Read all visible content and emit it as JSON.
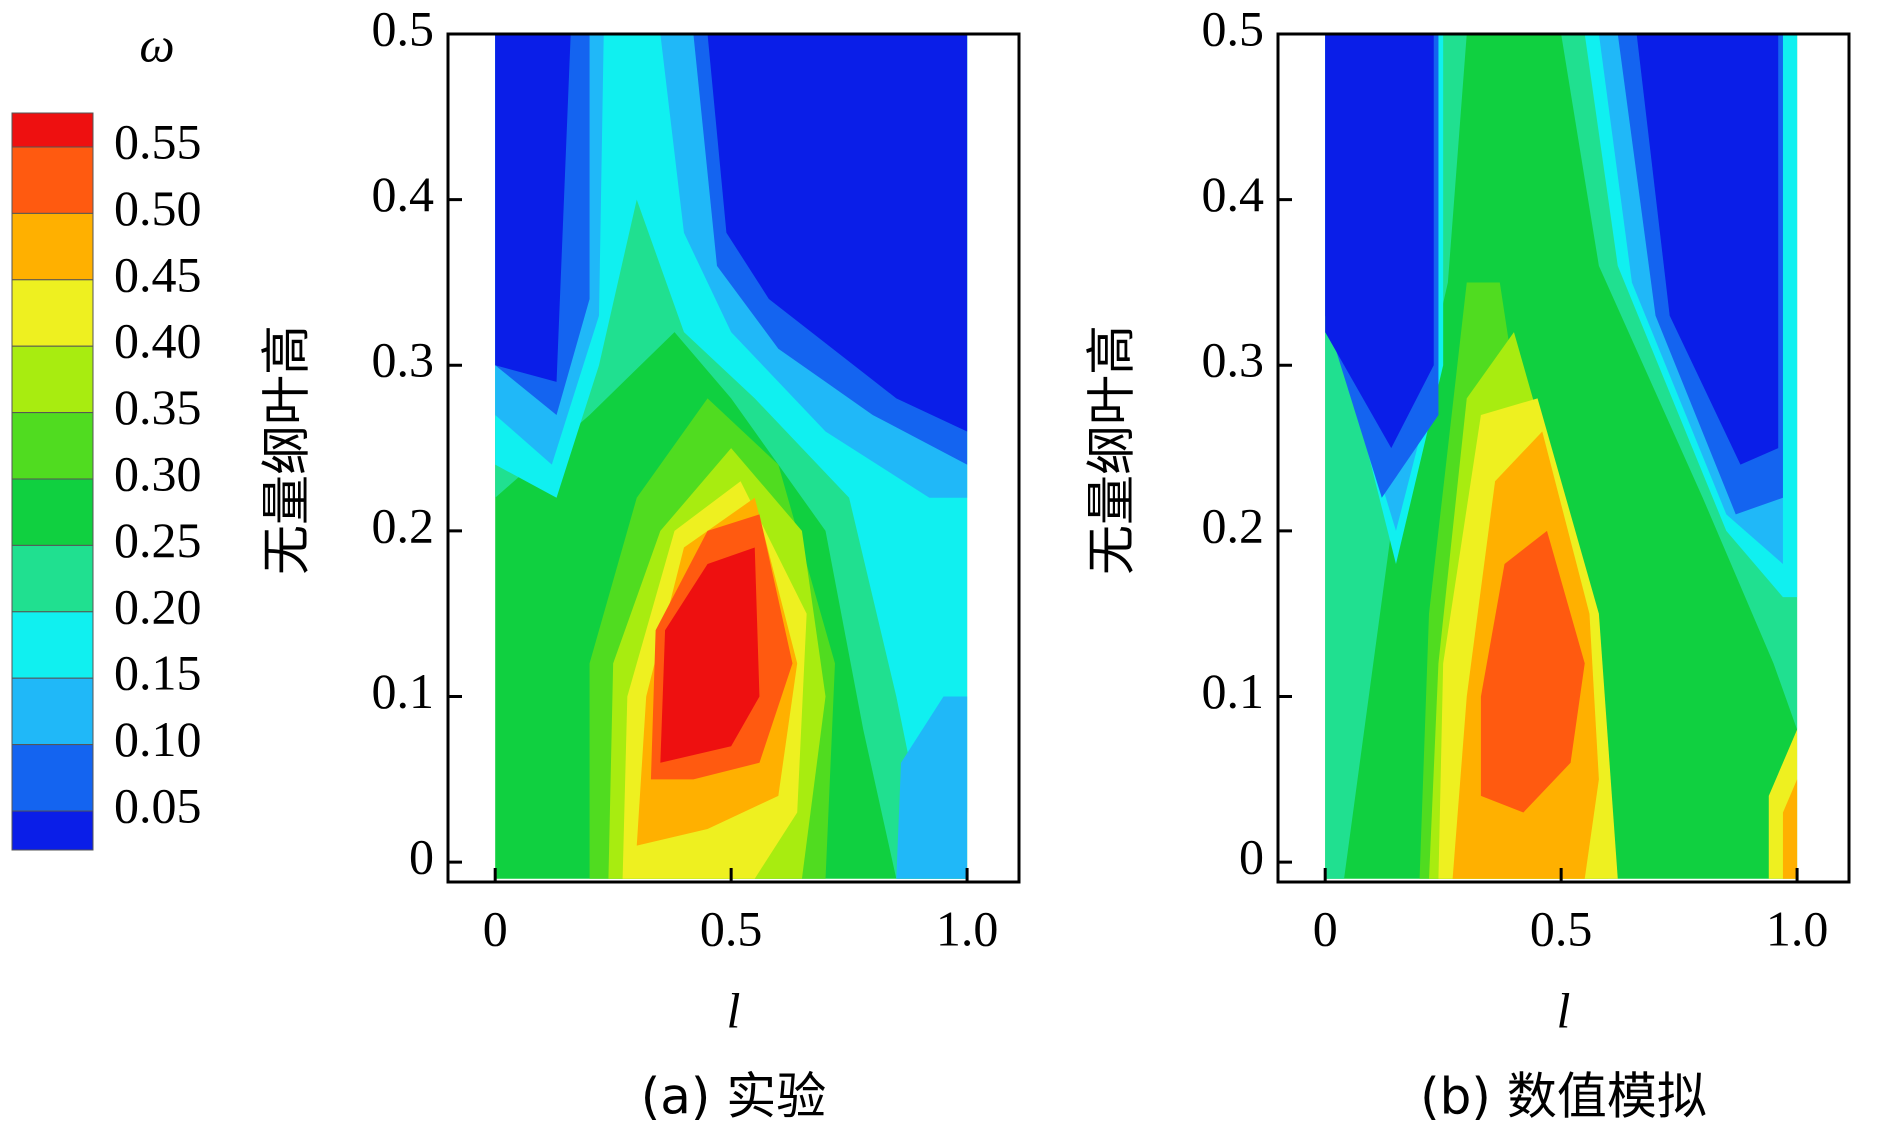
{
  "colorbar": {
    "title": "ω",
    "labels": [
      0.55,
      {
        "value": 0.5,
        "label": "0.50"
      },
      0.45,
      {
        "value": 0.4,
        "label": "0.40"
      },
      0.35,
      {
        "value": 0.3,
        "label": "0.30"
      },
      0.25,
      {
        "value": 0.2,
        "label": "0.20"
      },
      0.15,
      {
        "value": 0.1,
        "label": "0.10"
      },
      0.05
    ],
    "colors": [
      "#ee1010",
      "#ff5a10",
      "#ffb000",
      "#eef020",
      "#a8ec10",
      "#50dc20",
      "#10d040",
      "#20e090",
      "#10f0f0",
      "#20b8f8",
      "#1464f0",
      "#0a1ee8"
    ]
  },
  "chart_data": [
    {
      "type": "contour",
      "caption": "(a) 实验",
      "xlabel": "l",
      "ylabel": "无量纲叶高",
      "xlim": [
        -0.1,
        1.11
      ],
      "ylim": [
        -0.012,
        0.5
      ],
      "xticks": [
        0,
        0.5,
        {
          "value": 1,
          "label": "1.0"
        }
      ],
      "yticks": [
        0,
        0.1,
        0.2,
        0.3,
        0.4,
        0.5
      ],
      "regions": [
        {
          "color": "#10d040",
          "points": [
            [
              0,
              -0.01
            ],
            [
              0,
              0.5
            ],
            [
              1,
              0.5
            ],
            [
              1,
              -0.01
            ]
          ]
        },
        {
          "color": "#20e090",
          "points": [
            [
              0,
              0.5
            ],
            [
              0,
              0.22
            ],
            [
              0.2,
              0.27
            ],
            [
              0.38,
              0.32
            ],
            [
              0.5,
              0.28
            ],
            [
              0.7,
              0.2
            ],
            [
              0.78,
              0.08
            ],
            [
              0.85,
              -0.01
            ],
            [
              1,
              -0.01
            ],
            [
              1,
              0.5
            ]
          ]
        },
        {
          "color": "#10f0f0",
          "points": [
            [
              0,
              0.5
            ],
            [
              0,
              0.24
            ],
            [
              0.13,
              0.22
            ],
            [
              0.22,
              0.3
            ],
            [
              0.3,
              0.4
            ],
            [
              0.4,
              0.32
            ],
            [
              0.55,
              0.28
            ],
            [
              0.75,
              0.22
            ],
            [
              0.85,
              0.1
            ],
            [
              0.9,
              0.03
            ],
            [
              1,
              0.03
            ],
            [
              1,
              0.5
            ]
          ]
        },
        {
          "color": "#20b8f8",
          "points": [
            [
              0,
              0.5
            ],
            [
              0,
              0.27
            ],
            [
              0.12,
              0.24
            ],
            [
              0.22,
              0.33
            ],
            [
              0.23,
              0.5
            ],
            [
              0.35,
              0.5
            ],
            [
              0.4,
              0.38
            ],
            [
              0.5,
              0.32
            ],
            [
              0.7,
              0.26
            ],
            [
              0.92,
              0.22
            ],
            [
              1,
              0.22
            ],
            [
              1,
              0.5
            ]
          ]
        },
        {
          "color": "#20b8f8",
          "points": [
            [
              0.85,
              -0.01
            ],
            [
              0.86,
              0.06
            ],
            [
              0.95,
              0.1
            ],
            [
              1,
              0.1
            ],
            [
              1,
              -0.01
            ]
          ]
        },
        {
          "color": "#1464f0",
          "points": [
            [
              0,
              0.5
            ],
            [
              0,
              0.3
            ],
            [
              0.13,
              0.27
            ],
            [
              0.2,
              0.34
            ],
            [
              0.2,
              0.5
            ]
          ]
        },
        {
          "color": "#1464f0",
          "points": [
            [
              0.42,
              0.5
            ],
            [
              0.47,
              0.36
            ],
            [
              0.6,
              0.31
            ],
            [
              0.8,
              0.27
            ],
            [
              1,
              0.24
            ],
            [
              1,
              0.5
            ]
          ]
        },
        {
          "color": "#0a1ee8",
          "points": [
            [
              0,
              0.5
            ],
            [
              0,
              0.3
            ],
            [
              0.13,
              0.29
            ],
            [
              0.16,
              0.5
            ]
          ]
        },
        {
          "color": "#0a1ee8",
          "points": [
            [
              0.45,
              0.5
            ],
            [
              0.49,
              0.38
            ],
            [
              0.58,
              0.34
            ],
            [
              0.85,
              0.28
            ],
            [
              1,
              0.26
            ],
            [
              1,
              0.5
            ]
          ]
        },
        {
          "color": "#50dc20",
          "points": [
            [
              0.2,
              -0.01
            ],
            [
              0.2,
              0.12
            ],
            [
              0.3,
              0.22
            ],
            [
              0.45,
              0.28
            ],
            [
              0.6,
              0.24
            ],
            [
              0.72,
              0.12
            ],
            [
              0.7,
              -0.01
            ]
          ]
        },
        {
          "color": "#a8ec10",
          "points": [
            [
              0.24,
              -0.01
            ],
            [
              0.25,
              0.12
            ],
            [
              0.35,
              0.2
            ],
            [
              0.5,
              0.25
            ],
            [
              0.65,
              0.2
            ],
            [
              0.7,
              0.1
            ],
            [
              0.65,
              -0.01
            ]
          ]
        },
        {
          "color": "#eef020",
          "points": [
            [
              0.27,
              -0.01
            ],
            [
              0.28,
              0.1
            ],
            [
              0.38,
              0.2
            ],
            [
              0.52,
              0.23
            ],
            [
              0.66,
              0.15
            ],
            [
              0.64,
              0.03
            ],
            [
              0.55,
              -0.01
            ]
          ]
        },
        {
          "color": "#ffb000",
          "points": [
            [
              0.3,
              0.01
            ],
            [
              0.32,
              0.1
            ],
            [
              0.4,
              0.19
            ],
            [
              0.55,
              0.22
            ],
            [
              0.64,
              0.12
            ],
            [
              0.6,
              0.04
            ],
            [
              0.45,
              0.02
            ]
          ]
        },
        {
          "color": "#ff5a10",
          "points": [
            [
              0.33,
              0.05
            ],
            [
              0.34,
              0.14
            ],
            [
              0.45,
              0.2
            ],
            [
              0.56,
              0.21
            ],
            [
              0.63,
              0.12
            ],
            [
              0.56,
              0.06
            ],
            [
              0.42,
              0.05
            ]
          ]
        },
        {
          "color": "#ee1010",
          "points": [
            [
              0.35,
              0.06
            ],
            [
              0.36,
              0.14
            ],
            [
              0.45,
              0.18
            ],
            [
              0.55,
              0.19
            ],
            [
              0.56,
              0.1
            ],
            [
              0.5,
              0.07
            ]
          ]
        }
      ]
    },
    {
      "type": "contour",
      "caption": "(b) 数值模拟",
      "xlabel": "l",
      "ylabel": "无量纲叶高",
      "xlim": [
        -0.1,
        1.11
      ],
      "ylim": [
        -0.012,
        0.5
      ],
      "xticks": [
        0,
        0.5,
        {
          "value": 1,
          "label": "1.0"
        }
      ],
      "yticks": [
        0,
        0.1,
        0.2,
        0.3,
        0.4,
        0.5
      ],
      "regions": [
        {
          "color": "#10d040",
          "points": [
            [
              0,
              -0.01
            ],
            [
              0,
              0.5
            ],
            [
              1,
              0.5
            ],
            [
              1,
              -0.01
            ]
          ]
        },
        {
          "color": "#20e090",
          "points": [
            [
              0,
              0.5
            ],
            [
              0,
              -0.01
            ],
            [
              0.04,
              -0.01
            ],
            [
              0.14,
              0.2
            ],
            [
              0.26,
              0.35
            ],
            [
              0.3,
              0.5
            ]
          ]
        },
        {
          "color": "#20e090",
          "points": [
            [
              0.5,
              0.5
            ],
            [
              0.58,
              0.36
            ],
            [
              0.8,
              0.22
            ],
            [
              0.95,
              0.12
            ],
            [
              1,
              0.08
            ],
            [
              1,
              0.5
            ]
          ]
        },
        {
          "color": "#10f0f0",
          "points": [
            [
              0,
              0.5
            ],
            [
              0,
              0.35
            ],
            [
              0.15,
              0.18
            ],
            [
              0.25,
              0.3
            ],
            [
              0.25,
              0.5
            ]
          ]
        },
        {
          "color": "#10f0f0",
          "points": [
            [
              0.55,
              0.5
            ],
            [
              0.62,
              0.36
            ],
            [
              0.85,
              0.2
            ],
            [
              0.97,
              0.16
            ],
            [
              1,
              0.16
            ],
            [
              1,
              0.5
            ]
          ]
        },
        {
          "color": "#20b8f8",
          "points": [
            [
              0,
              0.5
            ],
            [
              0,
              0.34
            ],
            [
              0.15,
              0.2
            ],
            [
              0.24,
              0.3
            ],
            [
              0.24,
              0.5
            ]
          ]
        },
        {
          "color": "#20b8f8",
          "points": [
            [
              0.58,
              0.5
            ],
            [
              0.65,
              0.35
            ],
            [
              0.85,
              0.21
            ],
            [
              0.97,
              0.18
            ],
            [
              0.97,
              0.5
            ]
          ]
        },
        {
          "color": "#1464f0",
          "points": [
            [
              0,
              0.5
            ],
            [
              0,
              0.33
            ],
            [
              0.12,
              0.22
            ],
            [
              0.24,
              0.27
            ],
            [
              0.24,
              0.5
            ]
          ]
        },
        {
          "color": "#1464f0",
          "points": [
            [
              0.62,
              0.5
            ],
            [
              0.7,
              0.33
            ],
            [
              0.87,
              0.21
            ],
            [
              0.97,
              0.22
            ],
            [
              0.97,
              0.5
            ]
          ]
        },
        {
          "color": "#0a1ee8",
          "points": [
            [
              0,
              0.5
            ],
            [
              0,
              0.32
            ],
            [
              0.14,
              0.25
            ],
            [
              0.23,
              0.3
            ],
            [
              0.23,
              0.5
            ]
          ]
        },
        {
          "color": "#0a1ee8",
          "points": [
            [
              0.66,
              0.5
            ],
            [
              0.73,
              0.33
            ],
            [
              0.88,
              0.24
            ],
            [
              0.96,
              0.25
            ],
            [
              0.96,
              0.5
            ]
          ]
        },
        {
          "color": "#50dc20",
          "points": [
            [
              0.2,
              -0.01
            ],
            [
              0.22,
              0.15
            ],
            [
              0.3,
              0.35
            ],
            [
              0.37,
              0.35
            ],
            [
              0.45,
              0.2
            ],
            [
              0.5,
              -0.01
            ]
          ]
        },
        {
          "color": "#a8ec10",
          "points": [
            [
              0.22,
              -0.01
            ],
            [
              0.24,
              0.12
            ],
            [
              0.3,
              0.28
            ],
            [
              0.4,
              0.32
            ],
            [
              0.52,
              0.2
            ],
            [
              0.6,
              -0.01
            ]
          ]
        },
        {
          "color": "#eef020",
          "points": [
            [
              0.24,
              -0.01
            ],
            [
              0.25,
              0.12
            ],
            [
              0.33,
              0.27
            ],
            [
              0.45,
              0.28
            ],
            [
              0.58,
              0.15
            ],
            [
              0.62,
              -0.01
            ]
          ]
        },
        {
          "color": "#ffb000",
          "points": [
            [
              0.27,
              -0.01
            ],
            [
              0.3,
              0.1
            ],
            [
              0.36,
              0.23
            ],
            [
              0.46,
              0.26
            ],
            [
              0.56,
              0.15
            ],
            [
              0.58,
              0.05
            ],
            [
              0.55,
              -0.01
            ]
          ]
        },
        {
          "color": "#ff5a10",
          "points": [
            [
              0.33,
              0.04
            ],
            [
              0.33,
              0.1
            ],
            [
              0.38,
              0.18
            ],
            [
              0.47,
              0.2
            ],
            [
              0.55,
              0.12
            ],
            [
              0.52,
              0.06
            ],
            [
              0.42,
              0.03
            ]
          ]
        },
        {
          "color": "#eef020",
          "points": [
            [
              0.94,
              -0.01
            ],
            [
              0.94,
              0.04
            ],
            [
              1,
              0.08
            ],
            [
              1,
              -0.01
            ]
          ]
        },
        {
          "color": "#ffb000",
          "points": [
            [
              0.97,
              -0.01
            ],
            [
              0.97,
              0.03
            ],
            [
              1,
              0.05
            ],
            [
              1,
              -0.01
            ]
          ]
        }
      ]
    }
  ]
}
